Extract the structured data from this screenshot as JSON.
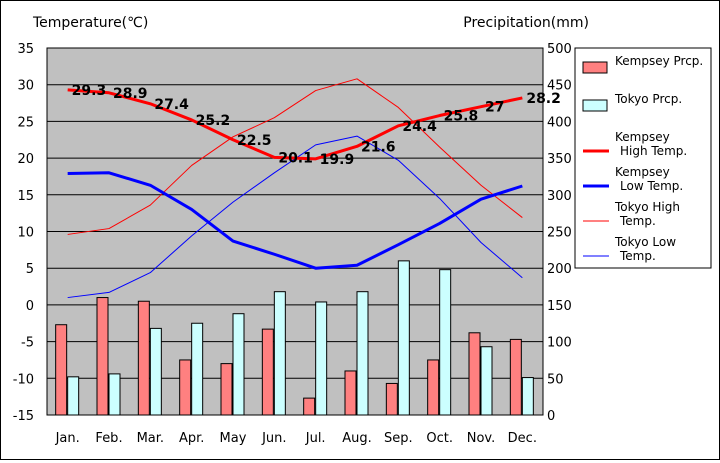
{
  "chart_data": {
    "type": "bar+line",
    "categories": [
      "Jan.",
      "Feb.",
      "Mar.",
      "Apr.",
      "May",
      "Jun.",
      "Jul.",
      "Aug.",
      "Sep.",
      "Oct.",
      "Nov.",
      "Dec."
    ],
    "left_axis": {
      "label": "Temperature(℃)",
      "ylim": [
        -15,
        35
      ],
      "ticks": [
        35,
        30,
        25,
        20,
        15,
        10,
        5,
        0,
        -5,
        -10,
        -15
      ]
    },
    "right_axis": {
      "label": "Precipitation(mm)",
      "ylim": [
        0,
        500
      ],
      "ticks": [
        500,
        450,
        400,
        350,
        300,
        250,
        200,
        150,
        100,
        50,
        0
      ]
    },
    "grid": true,
    "legend_position": "right",
    "series": [
      {
        "name": "Kempsey Prcp.",
        "kind": "bar",
        "axis": "right",
        "color": "#ff8080",
        "values": [
          123,
          160,
          155,
          75,
          70,
          117,
          23,
          60,
          43,
          75,
          112,
          103
        ]
      },
      {
        "name": "Tokyo Prcp.",
        "kind": "bar",
        "axis": "right",
        "color": "#ccffff",
        "values": [
          52,
          56,
          118,
          125,
          138,
          168,
          154,
          168,
          210,
          198,
          93,
          51
        ]
      },
      {
        "name": "Kempsey\nHigh Temp.",
        "kind": "line",
        "axis": "left",
        "color": "#ff0000",
        "width": 3,
        "values": [
          29.3,
          28.9,
          27.4,
          25.2,
          22.5,
          20.1,
          19.9,
          21.6,
          24.4,
          25.8,
          27,
          28.2
        ],
        "labels": [
          "29.3",
          "28.9",
          "27.4",
          "25.2",
          "22.5",
          "20.1",
          "19.9",
          "21.6",
          "24.4",
          "25.8",
          "27",
          "28.2"
        ]
      },
      {
        "name": "Kempsey\nLow Temp.",
        "kind": "line",
        "axis": "left",
        "color": "#0000ff",
        "width": 3,
        "values": [
          17.9,
          18,
          16.3,
          13,
          8.7,
          6.9,
          5,
          5.4,
          8.2,
          11.1,
          14.4,
          16.2
        ]
      },
      {
        "name": "Tokyo High\nTemp.",
        "kind": "line",
        "axis": "left",
        "color": "#ff0000",
        "width": 1,
        "values": [
          9.6,
          10.4,
          13.6,
          19,
          22.9,
          25.5,
          29.2,
          30.8,
          26.9,
          21.5,
          16.3,
          11.9
        ]
      },
      {
        "name": "Tokyo Low\nTemp.",
        "kind": "line",
        "axis": "left",
        "color": "#0000ff",
        "width": 1,
        "values": [
          1,
          1.7,
          4.4,
          9.4,
          14,
          18,
          21.8,
          23,
          19.7,
          14.5,
          8.5,
          3.7
        ]
      }
    ]
  }
}
